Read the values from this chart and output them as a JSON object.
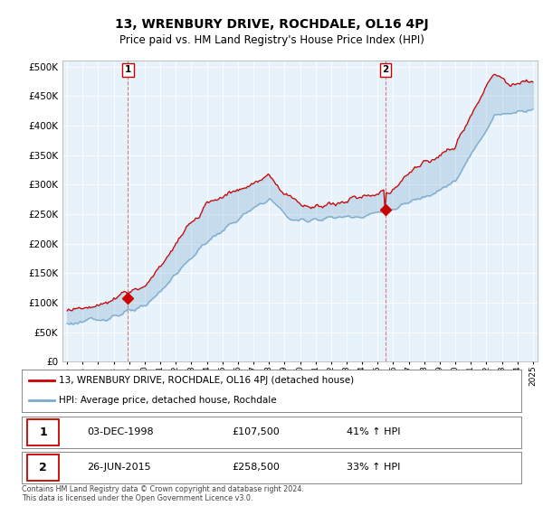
{
  "title": "13, WRENBURY DRIVE, ROCHDALE, OL16 4PJ",
  "subtitle": "Price paid vs. HM Land Registry's House Price Index (HPI)",
  "hpi_label": "HPI: Average price, detached house, Rochdale",
  "property_label": "13, WRENBURY DRIVE, ROCHDALE, OL16 4PJ (detached house)",
  "red_color": "#cc0000",
  "blue_color": "#7aabce",
  "fill_color": "#ddeeff",
  "background": "#ffffff",
  "plot_bg": "#e8f2fa",
  "grid_color": "#ffffff",
  "transaction1": {
    "num": 1,
    "date": "03-DEC-1998",
    "price": 107500,
    "hpi_change": "41% ↑ HPI"
  },
  "transaction2": {
    "num": 2,
    "date": "26-JUN-2015",
    "price": 258500,
    "hpi_change": "33% ↑ HPI"
  },
  "ylim": [
    0,
    510000
  ],
  "yticks": [
    0,
    50000,
    100000,
    150000,
    200000,
    250000,
    300000,
    350000,
    400000,
    450000,
    500000
  ],
  "xlim_start": 1994.7,
  "xlim_end": 2025.3,
  "footnote": "Contains HM Land Registry data © Crown copyright and database right 2024.\nThis data is licensed under the Open Government Licence v3.0."
}
